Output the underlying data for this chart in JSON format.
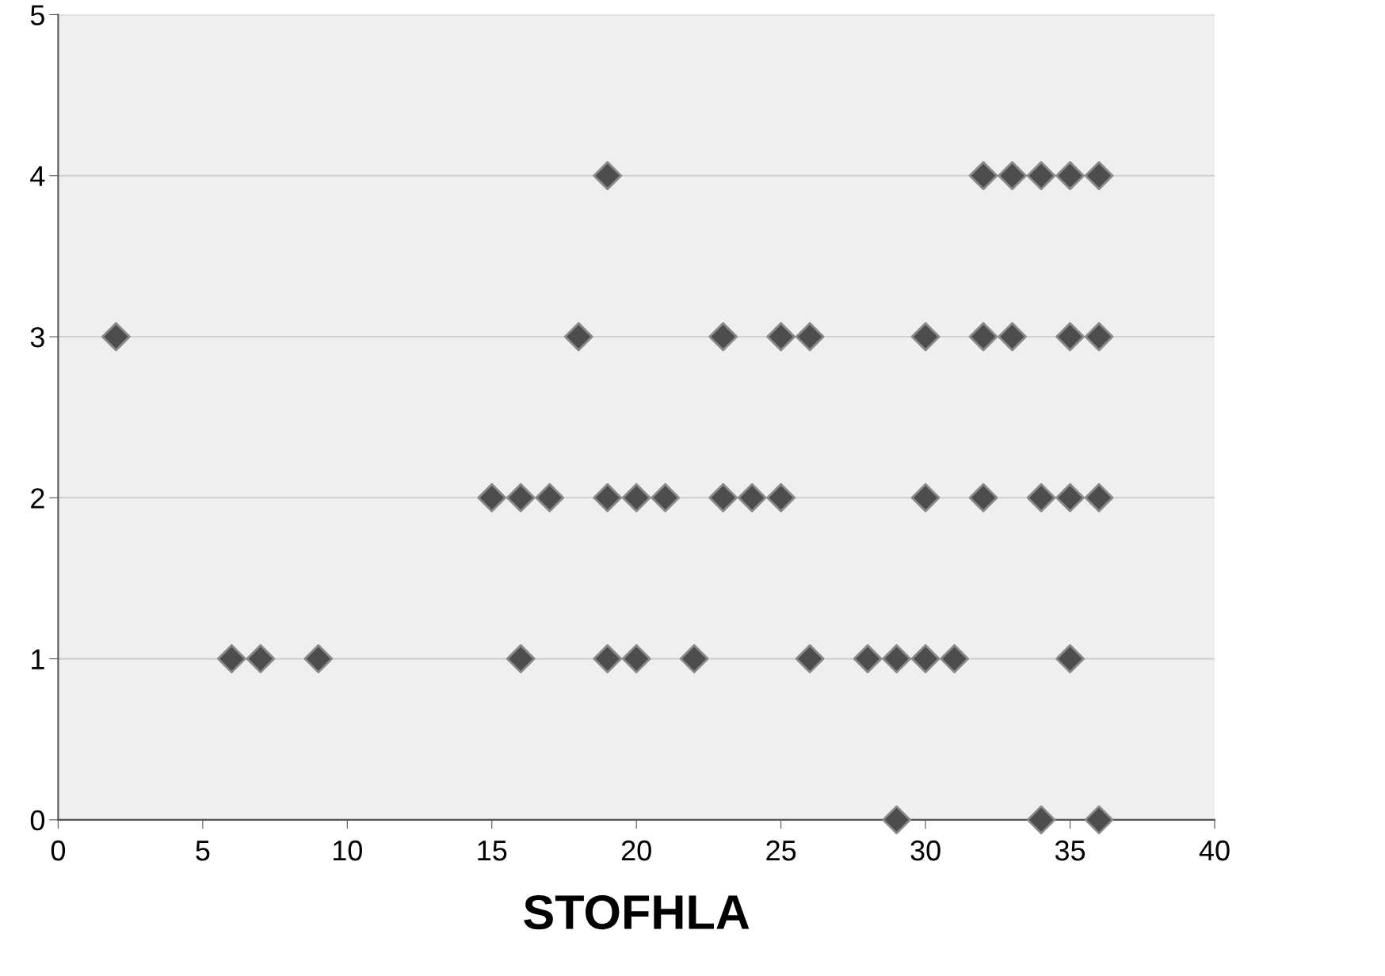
{
  "chart_data": {
    "type": "scatter",
    "xlabel": "STOFHLA",
    "series": [
      {
        "color": "#4d4d4d",
        "x": [
          19,
          32,
          33,
          34,
          35,
          36,
          2,
          18,
          23,
          25,
          26,
          30,
          32,
          33,
          35,
          36,
          15,
          16,
          17,
          19,
          20,
          21,
          23,
          24,
          25,
          30,
          32,
          34,
          35,
          36,
          6,
          7,
          9,
          16,
          19,
          20,
          22,
          26,
          28,
          29,
          30,
          31,
          35,
          29,
          34,
          36
        ],
        "values": [
          4,
          4,
          4,
          4,
          4,
          4,
          3,
          3,
          3,
          3,
          3,
          3,
          3,
          3,
          3,
          3,
          2,
          2,
          2,
          2,
          2,
          2,
          2,
          2,
          2,
          2,
          2,
          2,
          2,
          2,
          1,
          1,
          1,
          1,
          1,
          1,
          1,
          1,
          1,
          1,
          1,
          1,
          1,
          0,
          0,
          0
        ]
      }
    ],
    "xlim": [
      0,
      40
    ],
    "xticks": [
      0,
      5,
      10,
      15,
      20,
      25,
      30,
      35,
      40
    ],
    "ylim": [
      0,
      5
    ],
    "yticks": [
      0,
      1,
      2,
      3,
      4,
      5
    ],
    "grid": "y",
    "marker": "diamond",
    "legend": false
  }
}
